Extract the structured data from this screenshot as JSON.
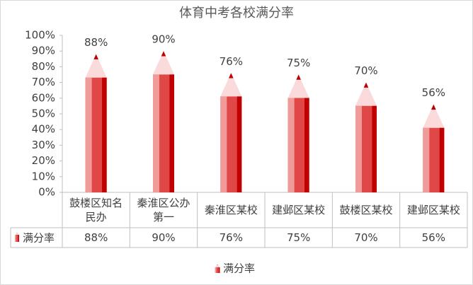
{
  "chart_data": {
    "type": "bar",
    "title": "体育中考各校满分率",
    "categories": [
      "鼓楼区知名民办",
      "秦淮区公办第一",
      "秦淮区某校",
      "建邺区某校",
      "鼓楼区某校",
      "建邺区某校"
    ],
    "series": [
      {
        "name": "满分率",
        "color": "#e04848",
        "values": [
          88,
          90,
          76,
          75,
          70,
          56
        ],
        "value_labels": [
          "88%",
          "90%",
          "76%",
          "75%",
          "70%",
          "56%"
        ]
      }
    ],
    "ylim": [
      0,
      100
    ],
    "yticks": [
      {
        "value": 0,
        "label": "0%"
      },
      {
        "value": 10,
        "label": "10%"
      },
      {
        "value": 20,
        "label": "20%"
      },
      {
        "value": 30,
        "label": "30%"
      },
      {
        "value": 40,
        "label": "40%"
      },
      {
        "value": 50,
        "label": "50%"
      },
      {
        "value": 60,
        "label": "60%"
      },
      {
        "value": 70,
        "label": "70%"
      },
      {
        "value": 80,
        "label": "80%"
      },
      {
        "value": 90,
        "label": "90%"
      },
      {
        "value": 100,
        "label": "100%"
      }
    ],
    "grid": false,
    "legend": "bottom"
  }
}
